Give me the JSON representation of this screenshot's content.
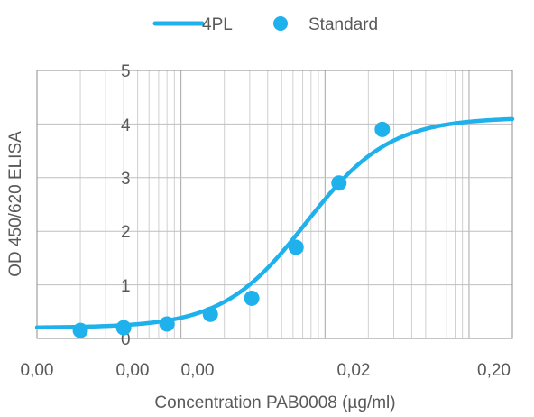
{
  "chart_data": {
    "type": "scatter",
    "title": "",
    "xlabel": "Concentration PAB0008 (µg/ml)",
    "ylabel": "OD 450/620 ELISA",
    "x_scale": "log",
    "xlim": [
      0.0001,
      0.2
    ],
    "ylim": [
      0,
      5
    ],
    "x_tick_labels": [
      "0,00",
      "0,00",
      "0,00",
      "0,02",
      "0,20"
    ],
    "y_tick_labels": [
      "0",
      "1",
      "2",
      "3",
      "4",
      "5"
    ],
    "grid": true,
    "legend_position": "top-center",
    "series": [
      {
        "name": "4PL",
        "type": "line",
        "color": "#1FB1EC",
        "model": {
          "bottom": 0.2,
          "top": 4.12,
          "ec50": 0.0074,
          "hill": 1.5
        },
        "x": [
          0.0001,
          0.0002,
          0.0005,
          0.001,
          0.002,
          0.003,
          0.005,
          0.0074,
          0.01,
          0.02,
          0.05,
          0.1,
          0.2
        ],
        "y": [
          0.2,
          0.2,
          0.24,
          0.32,
          0.6,
          0.92,
          1.6,
          2.16,
          2.67,
          3.54,
          3.99,
          4.08,
          4.11
        ]
      },
      {
        "name": "Standard",
        "type": "scatter",
        "color": "#1FB1EC",
        "x": [
          0.0002,
          0.0004,
          0.0008,
          0.0016,
          0.0031,
          0.0063,
          0.0125,
          0.025
        ],
        "y": [
          0.15,
          0.2,
          0.27,
          0.45,
          0.75,
          1.7,
          2.9,
          3.9
        ]
      }
    ]
  }
}
